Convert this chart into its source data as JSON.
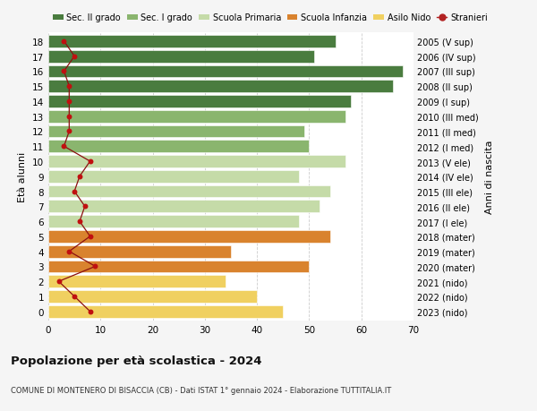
{
  "ages": [
    18,
    17,
    16,
    15,
    14,
    13,
    12,
    11,
    10,
    9,
    8,
    7,
    6,
    5,
    4,
    3,
    2,
    1,
    0
  ],
  "bar_values": [
    55,
    51,
    68,
    66,
    58,
    57,
    49,
    50,
    57,
    48,
    54,
    52,
    48,
    54,
    35,
    50,
    34,
    40,
    45
  ],
  "bar_colors": [
    "#4a7c3f",
    "#4a7c3f",
    "#4a7c3f",
    "#4a7c3f",
    "#4a7c3f",
    "#8ab56e",
    "#8ab56e",
    "#8ab56e",
    "#c5dba8",
    "#c5dba8",
    "#c5dba8",
    "#c5dba8",
    "#c5dba8",
    "#d9832e",
    "#d9832e",
    "#d9832e",
    "#f0d060",
    "#f0d060",
    "#f0d060"
  ],
  "right_labels": [
    "2005 (V sup)",
    "2006 (IV sup)",
    "2007 (III sup)",
    "2008 (II sup)",
    "2009 (I sup)",
    "2010 (III med)",
    "2011 (II med)",
    "2012 (I med)",
    "2013 (V ele)",
    "2014 (IV ele)",
    "2015 (III ele)",
    "2016 (II ele)",
    "2017 (I ele)",
    "2018 (mater)",
    "2019 (mater)",
    "2020 (mater)",
    "2021 (nido)",
    "2022 (nido)",
    "2023 (nido)"
  ],
  "stranieri_values": [
    3,
    5,
    3,
    4,
    4,
    4,
    4,
    3,
    8,
    6,
    5,
    7,
    6,
    8,
    4,
    9,
    2,
    5,
    8
  ],
  "legend_labels": [
    "Sec. II grado",
    "Sec. I grado",
    "Scuola Primaria",
    "Scuola Infanzia",
    "Asilo Nido",
    "Stranieri"
  ],
  "legend_colors": [
    "#4a7c3f",
    "#8ab56e",
    "#c5dba8",
    "#d9832e",
    "#f0d060",
    "#b22222"
  ],
  "title": "Popolazione per età scolastica - 2024",
  "subtitle": "COMUNE DI MONTENERO DI BISACCIA (CB) - Dati ISTAT 1° gennaio 2024 - Elaborazione TUTTITALIA.IT",
  "ylabel_left": "Età alunni",
  "ylabel_right": "Anni di nascita",
  "xlim": [
    0,
    70
  ],
  "xticks": [
    0,
    10,
    20,
    30,
    40,
    50,
    60,
    70
  ],
  "background_color": "#f5f5f5",
  "plot_bg_color": "#ffffff"
}
